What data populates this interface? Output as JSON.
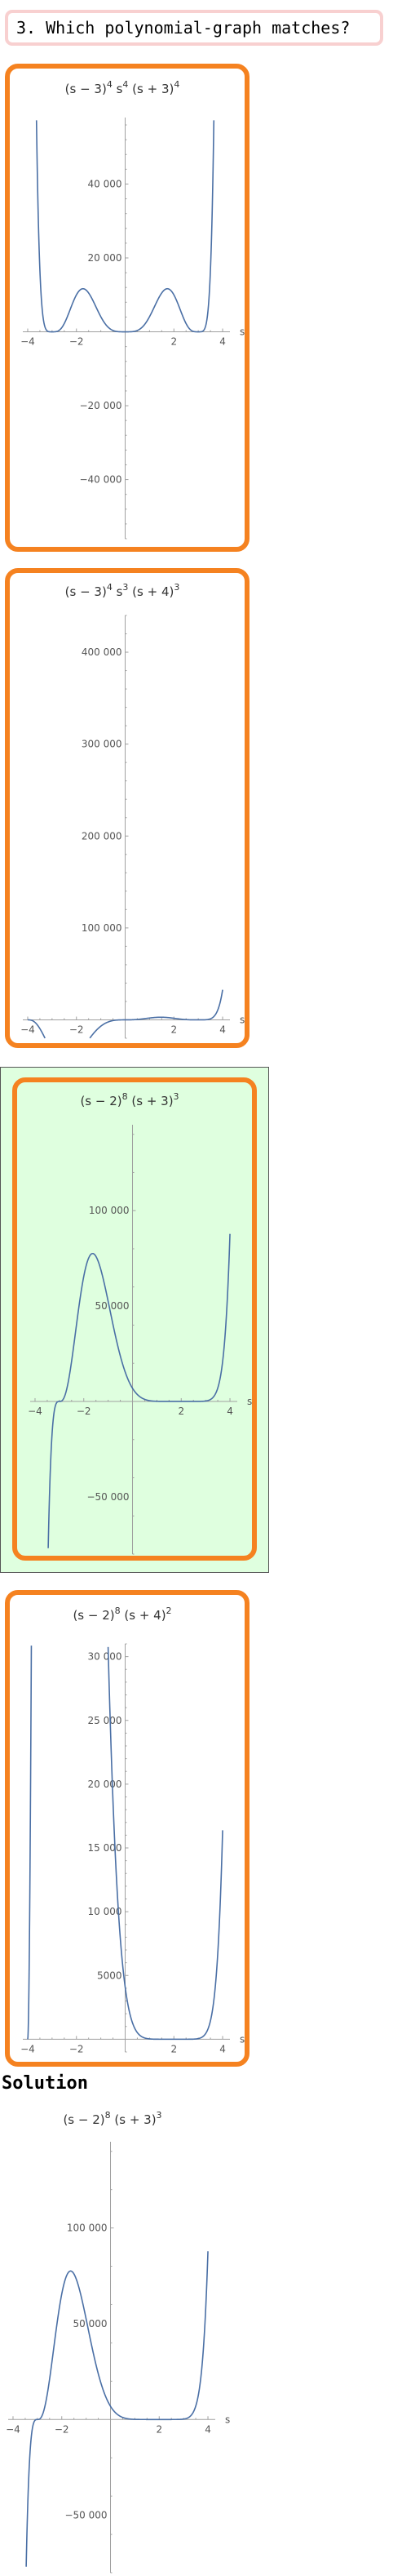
{
  "question": {
    "text": "3. Which polynomial-graph matches?"
  },
  "solution": {
    "heading": "Solution"
  },
  "colors": {
    "card_border": "#f58220",
    "correct_bg": "#dfffdf",
    "curve": "#4a6fa5",
    "axis": "#a0a0a0",
    "question_border": "#f8d0d0"
  },
  "plots": [
    {
      "id": "A",
      "title": {
        "base": [
          "(s − 3)",
          " s",
          " (s + 3)"
        ],
        "exp": [
          "4",
          "4",
          "4"
        ]
      },
      "chart_data": {
        "type": "line",
        "function": "(s-3)^4 s^4 (s+3)^4",
        "axis_label": "s",
        "xlim": [
          -4.2,
          4.3
        ],
        "ylim": [
          -56000,
          58000
        ],
        "xticks": [
          -4,
          -2,
          2,
          4
        ],
        "xtick_labels": [
          "−4",
          "−2",
          "2",
          "4"
        ],
        "yticks": [
          -40000,
          -20000,
          20000,
          40000
        ],
        "ytick_labels": [
          "−40 000",
          "−20 000",
          "20 000",
          "40 000"
        ]
      }
    },
    {
      "id": "B",
      "title": {
        "base": [
          "(s − 3)",
          " s",
          " (s + 4)"
        ],
        "exp": [
          "4",
          "3",
          "3"
        ]
      },
      "chart_data": {
        "type": "line",
        "function": "(s-3)^4 s^3 (s+4)^3",
        "axis_label": "s",
        "xlim": [
          -4.2,
          4.3
        ],
        "ylim": [
          -20000,
          440000
        ],
        "xticks": [
          -4,
          -2,
          2,
          4
        ],
        "xtick_labels": [
          "−4",
          "−2",
          "2",
          "4"
        ],
        "yticks": [
          100000,
          200000,
          300000,
          400000
        ],
        "ytick_labels": [
          "100 000",
          "200 000",
          "300 000",
          "400 000"
        ]
      }
    },
    {
      "id": "C",
      "title": {
        "base": [
          "(s − 2)",
          " (s + 3)"
        ],
        "exp": [
          "8",
          "3"
        ]
      },
      "chart_data": {
        "type": "line",
        "function": "(s-2)^8 (s+3)^3",
        "axis_label": "s",
        "xlim": [
          -4.2,
          4.3
        ],
        "ylim": [
          -80000,
          145000
        ],
        "xticks": [
          -4,
          -2,
          2,
          4
        ],
        "xtick_labels": [
          "−4",
          "−2",
          "2",
          "4"
        ],
        "yticks": [
          -50000,
          50000,
          100000
        ],
        "ytick_labels": [
          "−50 000",
          "50 000",
          "100 000"
        ]
      }
    },
    {
      "id": "D",
      "title": {
        "base": [
          "(s − 2)",
          " (s + 4)"
        ],
        "exp": [
          "8",
          "2"
        ]
      },
      "chart_data": {
        "type": "line",
        "function": "(s-2)^8 (s+4)^2",
        "axis_label": "s",
        "xlim": [
          -4.2,
          4.3
        ],
        "ylim": [
          -1000,
          31000
        ],
        "xticks": [
          -4,
          -2,
          2,
          4
        ],
        "xtick_labels": [
          "−4",
          "−2",
          "2",
          "4"
        ],
        "yticks": [
          5000,
          10000,
          15000,
          20000,
          25000,
          30000
        ],
        "ytick_labels": [
          "5000",
          "10 000",
          "15 000",
          "20 000",
          "25 000",
          "30 000"
        ]
      }
    },
    {
      "id": "S",
      "title": {
        "base": [
          "(s − 2)",
          " (s + 3)"
        ],
        "exp": [
          "8",
          "3"
        ]
      },
      "chart_data": {
        "type": "line",
        "function": "(s-2)^8 (s+3)^3",
        "axis_label": "s",
        "xlim": [
          -4.2,
          4.3
        ],
        "ylim": [
          -80000,
          145000
        ],
        "xticks": [
          -4,
          -2,
          2,
          4
        ],
        "xtick_labels": [
          "−4",
          "−2",
          "2",
          "4"
        ],
        "yticks": [
          -50000,
          50000,
          100000
        ],
        "ytick_labels": [
          "−50 000",
          "50 000",
          "100 000"
        ]
      }
    }
  ]
}
